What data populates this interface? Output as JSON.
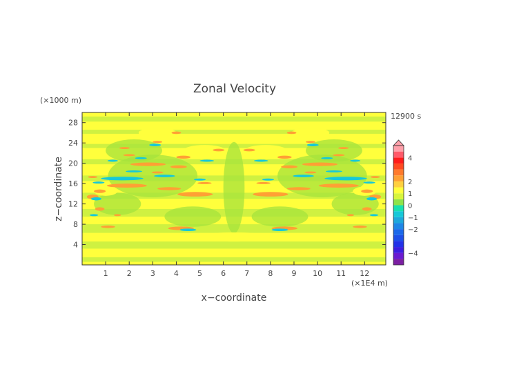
{
  "chart_data": {
    "type": "heatmap",
    "title": "Zonal Velocity",
    "xlabel": "x−coordinate",
    "ylabel": "z−coordinate",
    "x_unit": "(×1E4 m)",
    "y_unit": "(×1000 m)",
    "time_label": "12900 s",
    "xlim": [
      0,
      12.9
    ],
    "ylim": [
      0,
      30
    ],
    "x_ticks": [
      "1",
      "2",
      "3",
      "4",
      "5",
      "6",
      "7",
      "8",
      "9",
      "10",
      "11",
      "12"
    ],
    "y_ticks": [
      "4",
      "8",
      "12",
      "16",
      "20",
      "24",
      "28"
    ],
    "colorbar": {
      "levels": [
        -5,
        -4.5,
        -4,
        -3.5,
        -3,
        -2.5,
        -2,
        -1.5,
        -1,
        -0.5,
        0,
        0.5,
        1,
        1.5,
        2,
        2.5,
        3,
        3.5,
        4,
        4.5,
        5
      ],
      "colors": [
        "#7b1fa2",
        "#6a1bd0",
        "#3d1ee0",
        "#2332e8",
        "#1d4fe8",
        "#1b68ea",
        "#1f86e6",
        "#1ea8dc",
        "#16c8d8",
        "#18e0b0",
        "#8fe34a",
        "#d8f53c",
        "#ffff3c",
        "#ffd040",
        "#ffa034",
        "#ff7a2c",
        "#ff4a22",
        "#ff1c1c",
        "#ff5a6a",
        "#ffa0aa"
      ],
      "tick_labels": [
        "4",
        "2",
        "1",
        "0",
        "−1",
        "−2",
        "−4"
      ],
      "tick_values": [
        4,
        2,
        1,
        0,
        -1,
        -2,
        -4
      ]
    }
  }
}
